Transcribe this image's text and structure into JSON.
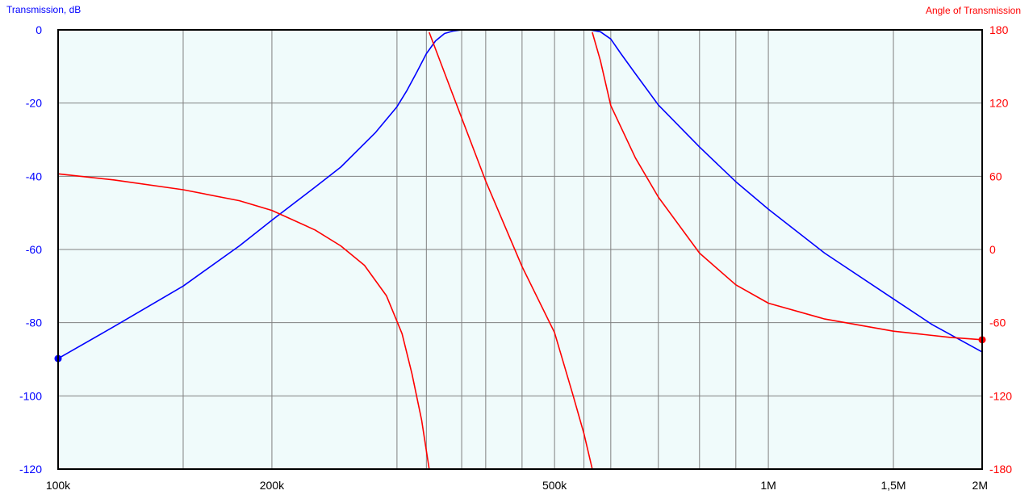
{
  "chart_data": {
    "type": "line",
    "left_axis_title": "Transmission, dB",
    "right_axis_title": "Angle of Transmission",
    "x_scale": "log",
    "xlim": [
      100000,
      2000000
    ],
    "ylim_left": [
      -120,
      0
    ],
    "ylim_right": [
      -180,
      180
    ],
    "grid": true,
    "colors": {
      "plot_background": "#f0fbfb",
      "grid": "#808080",
      "frame": "#000000",
      "transmission": "#0000ff",
      "angle": "#ff0000"
    },
    "x_ticks": [
      {
        "value": 100000,
        "label": "100k"
      },
      {
        "value": 200000,
        "label": "200k"
      },
      {
        "value": 500000,
        "label": "500k"
      },
      {
        "value": 1000000,
        "label": "1M"
      },
      {
        "value": 1500000,
        "label": "1,5M"
      },
      {
        "value": 2000000,
        "label": "2M"
      }
    ],
    "x_gridlines": [
      150000,
      200000,
      300000,
      330000,
      370000,
      400000,
      450000,
      500000,
      550000,
      600000,
      700000,
      800000,
      900000,
      1000000,
      1500000
    ],
    "left_ticks": [
      {
        "value": 0,
        "label": "0"
      },
      {
        "value": -20,
        "label": "-20"
      },
      {
        "value": -40,
        "label": "-40"
      },
      {
        "value": -60,
        "label": "-60"
      },
      {
        "value": -80,
        "label": "-80"
      },
      {
        "value": -100,
        "label": "-100"
      },
      {
        "value": -120,
        "label": "-120"
      }
    ],
    "right_ticks": [
      {
        "value": 180,
        "label": "180"
      },
      {
        "value": 120,
        "label": "120"
      },
      {
        "value": 60,
        "label": "60"
      },
      {
        "value": 0,
        "label": "0"
      },
      {
        "value": -60,
        "label": "-60"
      },
      {
        "value": -120,
        "label": "-120"
      },
      {
        "value": -180,
        "label": "-180"
      }
    ],
    "series": [
      {
        "axis": "left",
        "color": "#0000ff",
        "marker_at_start": true,
        "points": [
          [
            100000,
            -89.8
          ],
          [
            120000,
            -81
          ],
          [
            150000,
            -70
          ],
          [
            180000,
            -59
          ],
          [
            200000,
            -52
          ],
          [
            230000,
            -43
          ],
          [
            250000,
            -37.5
          ],
          [
            280000,
            -28
          ],
          [
            300000,
            -21
          ],
          [
            310000,
            -16.5
          ],
          [
            320000,
            -11.5
          ],
          [
            330000,
            -6.5
          ],
          [
            340000,
            -3
          ],
          [
            350000,
            -1
          ],
          [
            360000,
            -0.3
          ],
          [
            370000,
            0
          ],
          [
            400000,
            0
          ],
          [
            500000,
            0
          ],
          [
            560000,
            0
          ],
          [
            580000,
            -0.5
          ],
          [
            600000,
            -2.5
          ],
          [
            620000,
            -6.5
          ],
          [
            650000,
            -12
          ],
          [
            700000,
            -20.5
          ],
          [
            800000,
            -32
          ],
          [
            900000,
            -41.5
          ],
          [
            1000000,
            -49
          ],
          [
            1200000,
            -61
          ],
          [
            1500000,
            -73.5
          ],
          [
            1700000,
            -80.5
          ],
          [
            2000000,
            -88
          ]
        ]
      },
      {
        "axis": "right",
        "color": "#ff0000",
        "marker_at_end": true,
        "segments": [
          [
            [
              100000,
              62
            ],
            [
              120000,
              57
            ],
            [
              150000,
              49
            ],
            [
              180000,
              40
            ],
            [
              200000,
              32
            ],
            [
              230000,
              16
            ],
            [
              250000,
              3
            ],
            [
              270000,
              -13
            ],
            [
              290000,
              -38
            ],
            [
              305000,
              -69
            ],
            [
              315000,
              -102
            ],
            [
              325000,
              -140
            ],
            [
              333000,
              -180
            ]
          ],
          [
            [
              333000,
              180
            ]
          ],
          [
            [
              333000,
              178
            ],
            [
              360000,
              126
            ],
            [
              400000,
              56
            ],
            [
              450000,
              -14
            ],
            [
              500000,
              -68
            ],
            [
              530000,
              -118
            ],
            [
              550000,
              -151
            ],
            [
              565000,
              -180
            ]
          ],
          [
            [
              565000,
              180
            ]
          ],
          [
            [
              565000,
              178
            ],
            [
              580000,
              155
            ],
            [
              600000,
              118
            ],
            [
              650000,
              75
            ],
            [
              700000,
              43
            ],
            [
              800000,
              -3
            ],
            [
              900000,
              -29
            ],
            [
              1000000,
              -44
            ],
            [
              1200000,
              -57
            ],
            [
              1500000,
              -67
            ],
            [
              1800000,
              -72
            ],
            [
              2000000,
              -74
            ]
          ]
        ]
      }
    ]
  }
}
